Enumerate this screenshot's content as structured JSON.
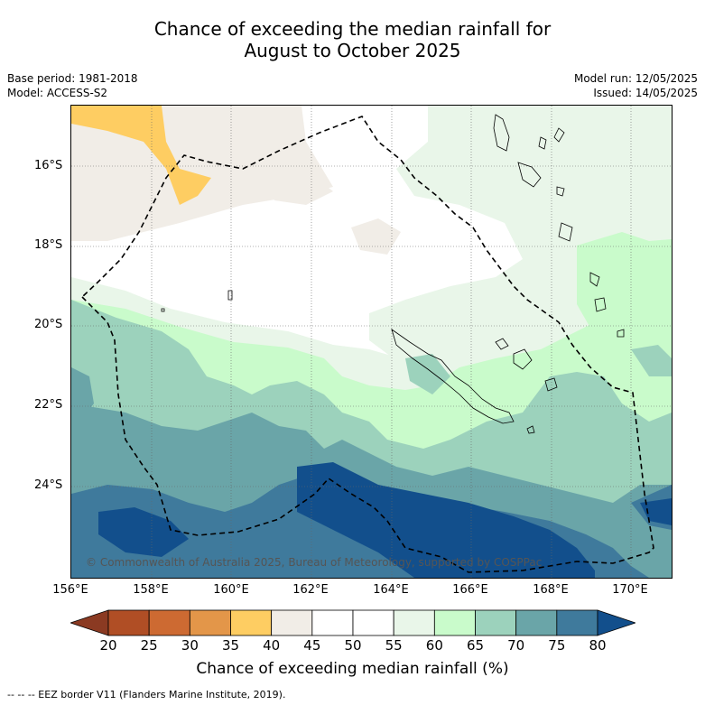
{
  "title": {
    "line1": "Chance of exceeding the median rainfall for",
    "line2": "August to October 2025"
  },
  "meta": {
    "base_period": "Base period: 1981-2018",
    "model": "Model: ACCESS-S2",
    "model_run": "Model run: 12/05/2025",
    "issued": "Issued: 14/05/2025"
  },
  "map": {
    "latitude_labels": [
      "16°S",
      "18°S",
      "20°S",
      "22°S",
      "24°S"
    ],
    "longitude_labels": [
      "156°E",
      "158°E",
      "160°E",
      "162°E",
      "164°E",
      "166°E",
      "168°E",
      "170°E"
    ],
    "copyright": "© Commonwealth of Australia 2025, Bureau of Meteorology, supported by COSPPac"
  },
  "colorbar": {
    "ticks": [
      "20",
      "25",
      "30",
      "35",
      "40",
      "45",
      "50",
      "55",
      "60",
      "65",
      "70",
      "75",
      "80"
    ],
    "colors": [
      "#8b3a22",
      "#b04e25",
      "#cd6a32",
      "#e39649",
      "#fecd62",
      "#f1ede7",
      "#ffffff",
      "#ffffff",
      "#e9f6e9",
      "#c9fbcb",
      "#9cd2bc",
      "#6aa5a8",
      "#3f7a9c",
      "#124f8c"
    ],
    "title": "Chance of exceeding median rainfall (%)"
  },
  "footnote": "--  --  -- EEZ border V11 (Flanders Marine Institute, 2019)."
}
